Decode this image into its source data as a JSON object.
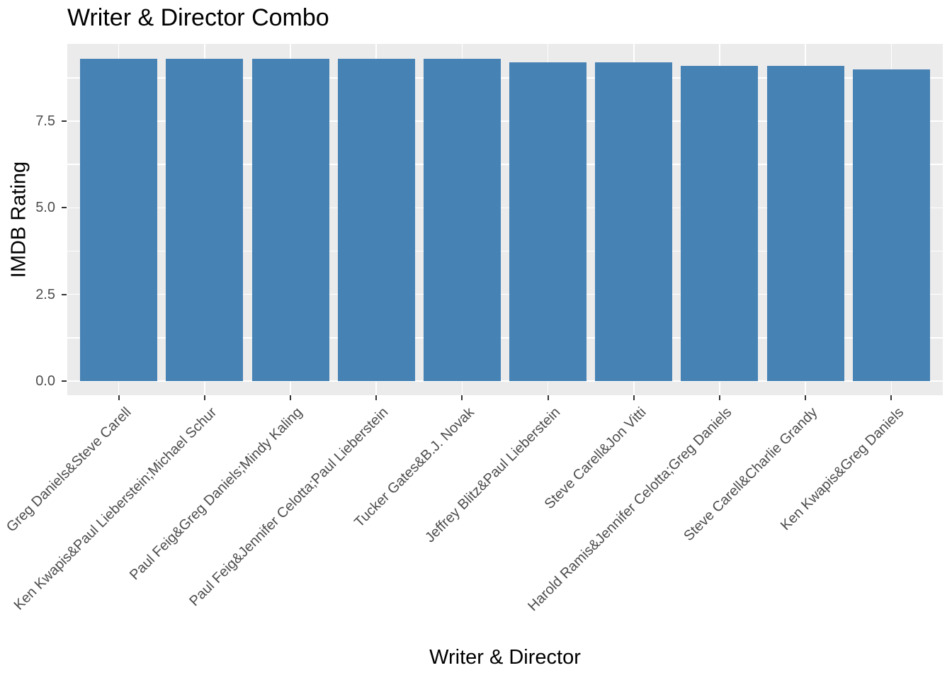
{
  "chart_data": {
    "type": "bar",
    "title": "Writer & Director Combo",
    "xlabel": "Writer & Director",
    "ylabel": "IMDB Rating",
    "categories": [
      "Greg Daniels&Steve Carell",
      "Ken Kwapis&Paul Lieberstein;Michael Schur",
      "Paul Feig&Greg Daniels;Mindy Kaling",
      "Paul Feig&Jennifer Celotta;Paul Lieberstein",
      "Tucker Gates&B.J. Novak",
      "Jeffrey Blitz&Paul Lieberstein",
      "Steve Carell&Jon Vitti",
      "Harold Ramis&Jennifer Celotta;Greg Daniels",
      "Steve Carell&Charlie Grandy",
      "Ken Kwapis&Greg Daniels"
    ],
    "values": [
      9.3,
      9.3,
      9.3,
      9.3,
      9.3,
      9.2,
      9.2,
      9.1,
      9.1,
      9.0
    ],
    "yticks": [
      0.0,
      2.5,
      5.0,
      7.5
    ],
    "ytick_labels": [
      "0.0",
      "2.5",
      "5.0",
      "7.5"
    ],
    "y_minor_gridlines": [
      1.25,
      3.75,
      6.25,
      8.75
    ],
    "ylim": [
      -0.41,
      9.73
    ],
    "x_label_angle_deg": 45,
    "grid": true,
    "legend": false,
    "bar_width_fraction": 0.9,
    "colors": {
      "bar_fill": "#4682B4",
      "panel_background": "#EBEBEB",
      "gridline": "#FFFFFF",
      "tick_text": "#4D4D4D",
      "tick_mark": "#333333",
      "title_text": "#000000"
    }
  }
}
